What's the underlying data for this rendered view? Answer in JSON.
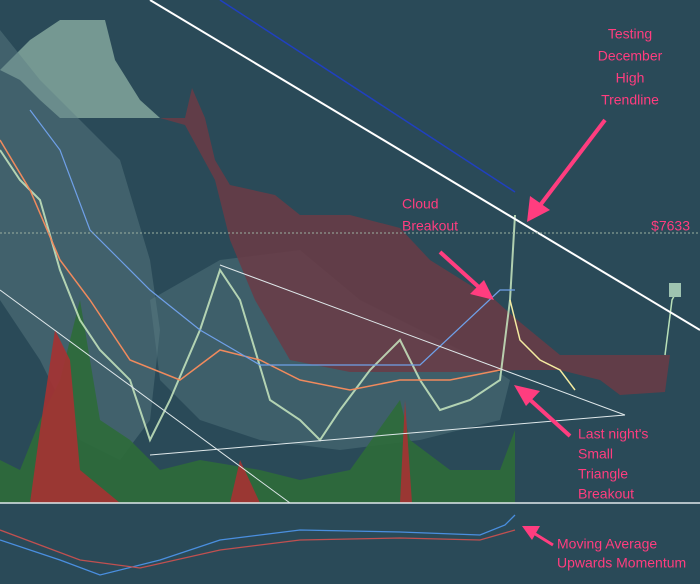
{
  "price_label": "$7633",
  "annotations": [
    {
      "lines": [
        "Testing",
        "December",
        "High",
        "Trendline"
      ]
    },
    {
      "lines": [
        "Cloud",
        "Breakout"
      ]
    },
    {
      "lines": [
        "Last night's",
        "Small",
        "Triangle",
        "Breakout"
      ]
    },
    {
      "lines": [
        "Moving Average",
        "Upwards Momentum"
      ]
    }
  ]
}
